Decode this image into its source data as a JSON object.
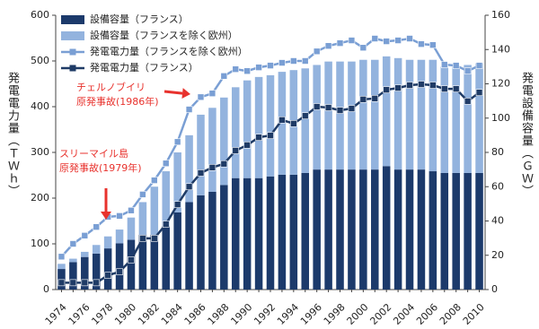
{
  "chart_data": {
    "type": "bar-line",
    "categories": [
      "1974",
      null,
      "1976",
      null,
      "1978",
      null,
      "1980",
      null,
      "1982",
      null,
      "1984",
      null,
      "1986",
      null,
      "1988",
      null,
      "1990",
      null,
      "1992",
      null,
      "1994",
      null,
      "1996",
      null,
      "1998",
      null,
      "2000",
      null,
      "2002",
      null,
      "2004",
      null,
      "2006",
      null,
      "2008",
      null,
      "2010"
    ],
    "ylabel": "発電電力量（ＴＷｈ）",
    "y2label": "発電設備容量（ＧＷ）",
    "ylim": [
      0,
      600
    ],
    "yticks": [
      0,
      100,
      200,
      300,
      400,
      500,
      600
    ],
    "y2lim": [
      0,
      160
    ],
    "y2ticks": [
      0,
      20,
      40,
      60,
      80,
      100,
      120,
      140,
      160
    ],
    "series": [
      {
        "name": "設備容量（フランス）",
        "type": "bar",
        "axis": "y2",
        "color": "#1c3a6b",
        "values": [
          12,
          16,
          19,
          21,
          24,
          27,
          29,
          32,
          32,
          37,
          45,
          51,
          55,
          57,
          61,
          65,
          65,
          65,
          66,
          67,
          67,
          68,
          70,
          70,
          70,
          70,
          70,
          70,
          72,
          70,
          70,
          70,
          69,
          68,
          68,
          68,
          68
        ]
      },
      {
        "name": "設備容量（フランスを除く欧州）",
        "type": "bar",
        "axis": "y2",
        "color": "#93b3de",
        "values": [
          3,
          2,
          3,
          5,
          7,
          8,
          13,
          19,
          28,
          32,
          35,
          39,
          47,
          49,
          51,
          53,
          57,
          59,
          59,
          60,
          61,
          61,
          61,
          63,
          63,
          63,
          64,
          64,
          64,
          65,
          64,
          64,
          65,
          62,
          62,
          63,
          64
        ]
      },
      {
        "name": "発電電力量（フランスを除く欧州）",
        "type": "line",
        "color": "#7a9fd4",
        "values": [
          72,
          100,
          118,
          137,
          159,
          161,
          173,
          208,
          239,
          276,
          323,
          394,
          421,
          429,
          467,
          482,
          478,
          486,
          490,
          496,
          500,
          500,
          521,
          533,
          539,
          545,
          529,
          549,
          543,
          545,
          549,
          537,
          535,
          492,
          490,
          478,
          490
        ]
      },
      {
        "name": "発電電力量（フランス）",
        "type": "line",
        "color": "#1f3b66",
        "values": [
          15,
          15,
          15,
          15,
          31,
          39,
          65,
          112,
          112,
          143,
          186,
          225,
          255,
          267,
          275,
          304,
          316,
          333,
          337,
          371,
          363,
          380,
          400,
          398,
          392,
          396,
          416,
          418,
          437,
          441,
          447,
          449,
          447,
          439,
          439,
          412,
          431
        ]
      }
    ],
    "annotations": [
      {
        "lines": [
          "チェルノブイリ",
          "原発事故(1986年)"
        ],
        "color": "#e8322d"
      },
      {
        "lines": [
          "スリーマイル島",
          "原発事故(1979年)"
        ],
        "color": "#e8322d"
      }
    ]
  }
}
